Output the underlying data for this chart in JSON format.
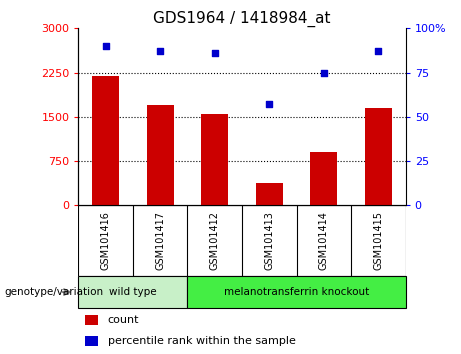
{
  "title": "GDS1964 / 1418984_at",
  "samples": [
    "GSM101416",
    "GSM101417",
    "GSM101412",
    "GSM101413",
    "GSM101414",
    "GSM101415"
  ],
  "counts": [
    2200,
    1700,
    1550,
    370,
    900,
    1650
  ],
  "percentile_ranks": [
    90,
    87,
    86,
    57,
    75,
    87
  ],
  "groups": [
    {
      "label": "wild type",
      "span": [
        0,
        2
      ],
      "color": "#c8f0c8"
    },
    {
      "label": "melanotransferrin knockout",
      "span": [
        2,
        6
      ],
      "color": "#44ee44"
    }
  ],
  "bar_color": "#cc0000",
  "dot_color": "#0000cc",
  "left_ylim": [
    0,
    3000
  ],
  "right_ylim": [
    0,
    100
  ],
  "left_yticks": [
    0,
    750,
    1500,
    2250,
    3000
  ],
  "right_yticks": [
    0,
    25,
    50,
    75,
    100
  ],
  "grid_values": [
    750,
    1500,
    2250
  ],
  "background_color": "#ffffff",
  "plot_bg": "#ffffff",
  "genotype_label": "genotype/variation",
  "legend_count_label": "count",
  "legend_percentile_label": "percentile rank within the sample",
  "bar_width": 0.5,
  "tick_label_bg": "#c0c0c0",
  "figsize": [
    4.61,
    3.54
  ],
  "dpi": 100
}
